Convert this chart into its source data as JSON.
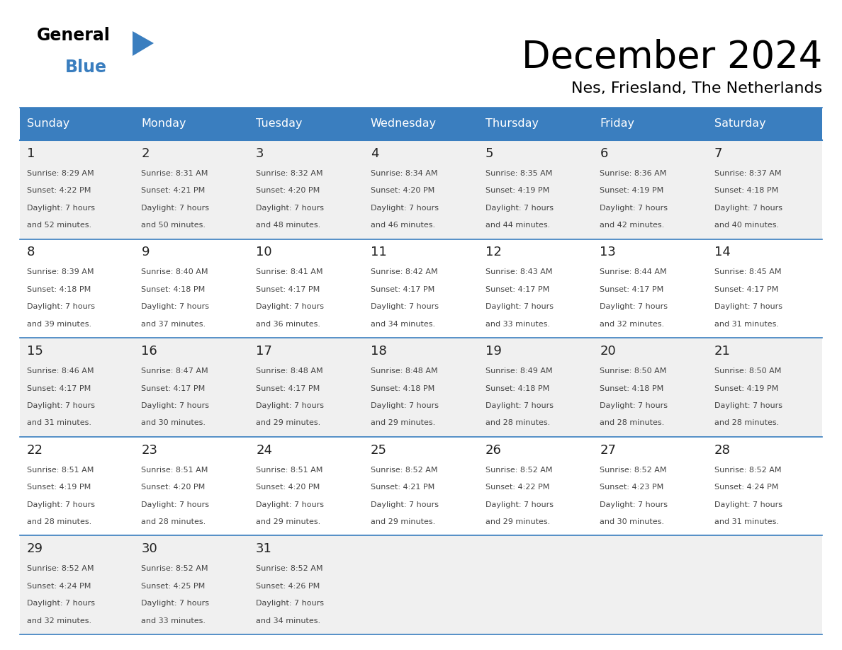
{
  "title": "December 2024",
  "subtitle": "Nes, Friesland, The Netherlands",
  "header_bg": "#3A7EBF",
  "header_text_color": "#FFFFFF",
  "day_names": [
    "Sunday",
    "Monday",
    "Tuesday",
    "Wednesday",
    "Thursday",
    "Friday",
    "Saturday"
  ],
  "cell_bg_odd": "#F0F0F0",
  "cell_bg_even": "#FFFFFF",
  "border_color": "#3A7EBF",
  "text_color": "#333333",
  "num_color": "#222222",
  "calendar": [
    [
      {
        "day": 1,
        "sunrise": "8:29 AM",
        "sunset": "4:22 PM",
        "daylight": "7 hours and 52 minutes."
      },
      {
        "day": 2,
        "sunrise": "8:31 AM",
        "sunset": "4:21 PM",
        "daylight": "7 hours and 50 minutes."
      },
      {
        "day": 3,
        "sunrise": "8:32 AM",
        "sunset": "4:20 PM",
        "daylight": "7 hours and 48 minutes."
      },
      {
        "day": 4,
        "sunrise": "8:34 AM",
        "sunset": "4:20 PM",
        "daylight": "7 hours and 46 minutes."
      },
      {
        "day": 5,
        "sunrise": "8:35 AM",
        "sunset": "4:19 PM",
        "daylight": "7 hours and 44 minutes."
      },
      {
        "day": 6,
        "sunrise": "8:36 AM",
        "sunset": "4:19 PM",
        "daylight": "7 hours and 42 minutes."
      },
      {
        "day": 7,
        "sunrise": "8:37 AM",
        "sunset": "4:18 PM",
        "daylight": "7 hours and 40 minutes."
      }
    ],
    [
      {
        "day": 8,
        "sunrise": "8:39 AM",
        "sunset": "4:18 PM",
        "daylight": "7 hours and 39 minutes."
      },
      {
        "day": 9,
        "sunrise": "8:40 AM",
        "sunset": "4:18 PM",
        "daylight": "7 hours and 37 minutes."
      },
      {
        "day": 10,
        "sunrise": "8:41 AM",
        "sunset": "4:17 PM",
        "daylight": "7 hours and 36 minutes."
      },
      {
        "day": 11,
        "sunrise": "8:42 AM",
        "sunset": "4:17 PM",
        "daylight": "7 hours and 34 minutes."
      },
      {
        "day": 12,
        "sunrise": "8:43 AM",
        "sunset": "4:17 PM",
        "daylight": "7 hours and 33 minutes."
      },
      {
        "day": 13,
        "sunrise": "8:44 AM",
        "sunset": "4:17 PM",
        "daylight": "7 hours and 32 minutes."
      },
      {
        "day": 14,
        "sunrise": "8:45 AM",
        "sunset": "4:17 PM",
        "daylight": "7 hours and 31 minutes."
      }
    ],
    [
      {
        "day": 15,
        "sunrise": "8:46 AM",
        "sunset": "4:17 PM",
        "daylight": "7 hours and 31 minutes."
      },
      {
        "day": 16,
        "sunrise": "8:47 AM",
        "sunset": "4:17 PM",
        "daylight": "7 hours and 30 minutes."
      },
      {
        "day": 17,
        "sunrise": "8:48 AM",
        "sunset": "4:17 PM",
        "daylight": "7 hours and 29 minutes."
      },
      {
        "day": 18,
        "sunrise": "8:48 AM",
        "sunset": "4:18 PM",
        "daylight": "7 hours and 29 minutes."
      },
      {
        "day": 19,
        "sunrise": "8:49 AM",
        "sunset": "4:18 PM",
        "daylight": "7 hours and 28 minutes."
      },
      {
        "day": 20,
        "sunrise": "8:50 AM",
        "sunset": "4:18 PM",
        "daylight": "7 hours and 28 minutes."
      },
      {
        "day": 21,
        "sunrise": "8:50 AM",
        "sunset": "4:19 PM",
        "daylight": "7 hours and 28 minutes."
      }
    ],
    [
      {
        "day": 22,
        "sunrise": "8:51 AM",
        "sunset": "4:19 PM",
        "daylight": "7 hours and 28 minutes."
      },
      {
        "day": 23,
        "sunrise": "8:51 AM",
        "sunset": "4:20 PM",
        "daylight": "7 hours and 28 minutes."
      },
      {
        "day": 24,
        "sunrise": "8:51 AM",
        "sunset": "4:20 PM",
        "daylight": "7 hours and 29 minutes."
      },
      {
        "day": 25,
        "sunrise": "8:52 AM",
        "sunset": "4:21 PM",
        "daylight": "7 hours and 29 minutes."
      },
      {
        "day": 26,
        "sunrise": "8:52 AM",
        "sunset": "4:22 PM",
        "daylight": "7 hours and 29 minutes."
      },
      {
        "day": 27,
        "sunrise": "8:52 AM",
        "sunset": "4:23 PM",
        "daylight": "7 hours and 30 minutes."
      },
      {
        "day": 28,
        "sunrise": "8:52 AM",
        "sunset": "4:24 PM",
        "daylight": "7 hours and 31 minutes."
      }
    ],
    [
      {
        "day": 29,
        "sunrise": "8:52 AM",
        "sunset": "4:24 PM",
        "daylight": "7 hours and 32 minutes."
      },
      {
        "day": 30,
        "sunrise": "8:52 AM",
        "sunset": "4:25 PM",
        "daylight": "7 hours and 33 minutes."
      },
      {
        "day": 31,
        "sunrise": "8:52 AM",
        "sunset": "4:26 PM",
        "daylight": "7 hours and 34 minutes."
      },
      null,
      null,
      null,
      null
    ]
  ],
  "fig_width": 11.88,
  "fig_height": 9.18,
  "dpi": 100
}
